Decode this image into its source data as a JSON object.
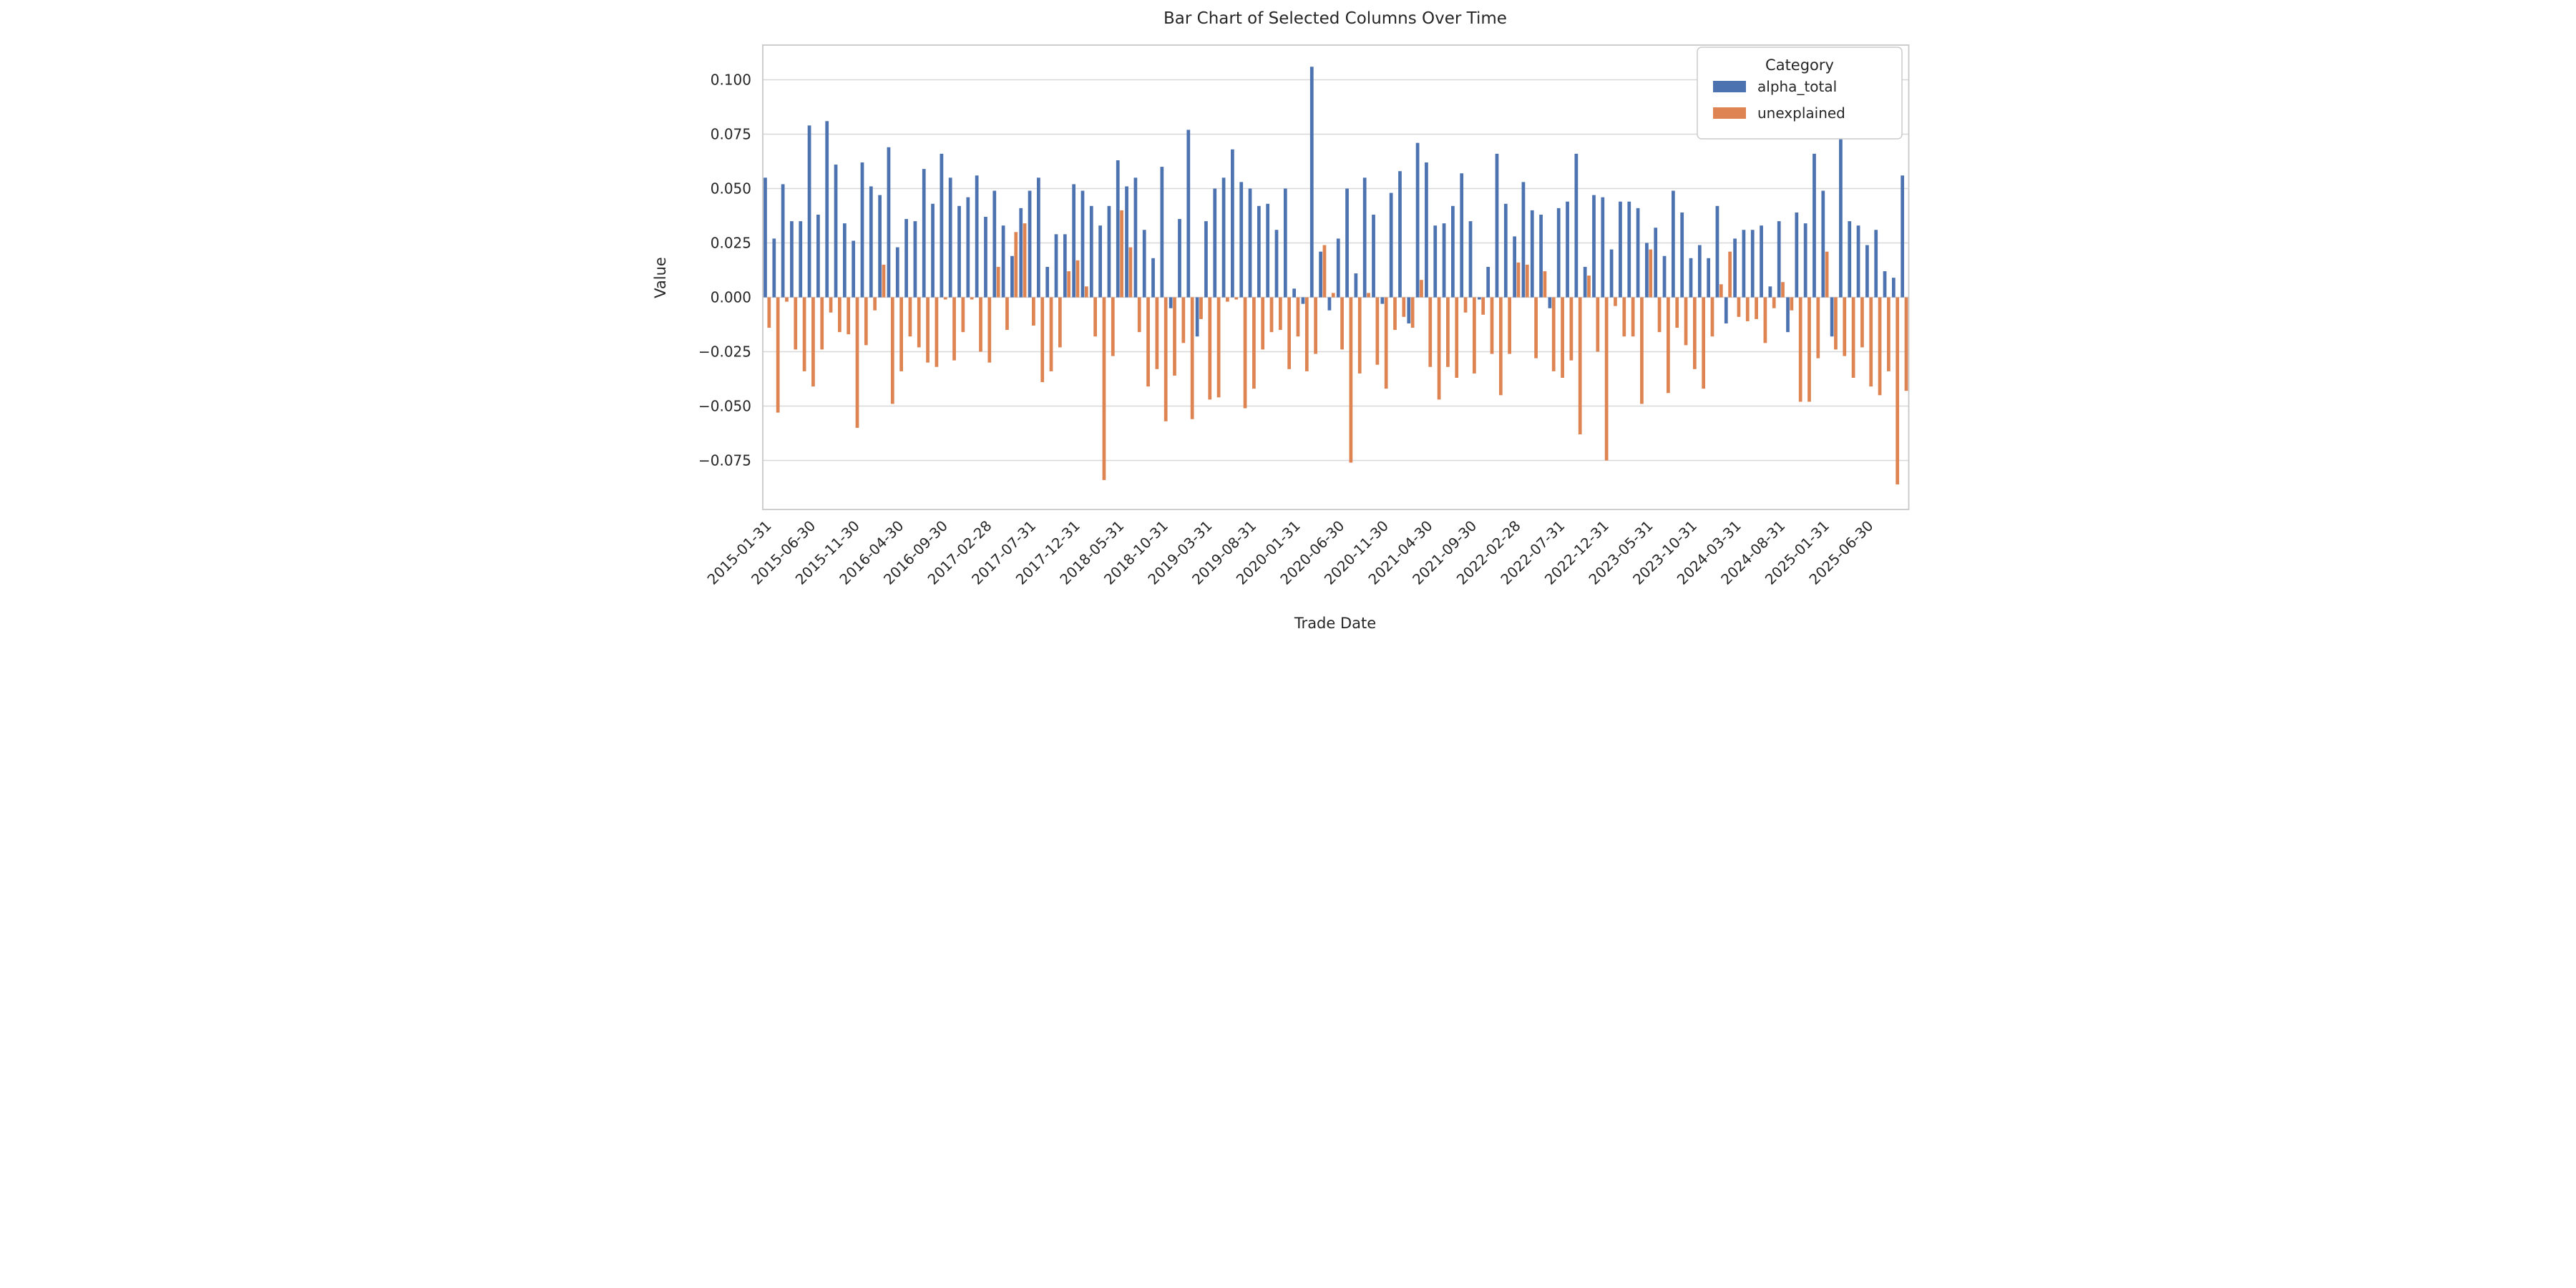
{
  "chart_data": {
    "type": "bar",
    "title": "Bar Chart of Selected Columns Over Time",
    "xlabel": "Trade Date",
    "ylabel": "Value",
    "legend": {
      "title": "Category",
      "position": "upper right"
    },
    "grid": true,
    "ylim": [
      -0.0975,
      0.116
    ],
    "x_tick_rotation": 45,
    "x_tick_step": 5,
    "colors": {
      "grid": "#d8d8d8",
      "spine": "#c8c8c8",
      "text": "#262626",
      "background": "#ffffff"
    },
    "y_ticks": [
      {
        "value": 0.1,
        "label": "0.100"
      },
      {
        "value": 0.075,
        "label": "0.075"
      },
      {
        "value": 0.05,
        "label": "0.050"
      },
      {
        "value": 0.025,
        "label": "0.025"
      },
      {
        "value": 0.0,
        "label": "0.000"
      },
      {
        "value": -0.025,
        "label": "−0.025"
      },
      {
        "value": -0.05,
        "label": "−0.050"
      },
      {
        "value": -0.075,
        "label": "−0.075"
      }
    ],
    "x_tick_labels": [
      "2015-01-31",
      "2015-06-30",
      "2015-11-30",
      "2016-04-30",
      "2016-09-30",
      "2017-02-28",
      "2017-07-31",
      "2017-12-31",
      "2018-05-31",
      "2018-10-31",
      "2019-03-31",
      "2019-08-31",
      "2020-01-31",
      "2020-06-30",
      "2020-11-30",
      "2021-04-30",
      "2021-09-30",
      "2022-02-28",
      "2022-07-31",
      "2022-12-31",
      "2023-05-31",
      "2023-10-31",
      "2024-03-31",
      "2024-08-31",
      "2025-01-31",
      "2025-06-30"
    ],
    "categories": [
      "2015-01-31",
      "2015-02-28",
      "2015-03-31",
      "2015-04-30",
      "2015-05-31",
      "2015-06-30",
      "2015-07-31",
      "2015-08-31",
      "2015-09-30",
      "2015-10-31",
      "2015-11-30",
      "2015-12-31",
      "2016-01-31",
      "2016-02-29",
      "2016-03-31",
      "2016-04-30",
      "2016-05-31",
      "2016-06-30",
      "2016-07-31",
      "2016-08-31",
      "2016-09-30",
      "2016-10-31",
      "2016-11-30",
      "2016-12-31",
      "2017-01-31",
      "2017-02-28",
      "2017-03-31",
      "2017-04-30",
      "2017-05-31",
      "2017-06-30",
      "2017-07-31",
      "2017-08-31",
      "2017-09-30",
      "2017-10-31",
      "2017-11-30",
      "2017-12-31",
      "2018-01-31",
      "2018-02-28",
      "2018-03-31",
      "2018-04-30",
      "2018-05-31",
      "2018-06-30",
      "2018-07-31",
      "2018-08-31",
      "2018-09-30",
      "2018-10-31",
      "2018-11-30",
      "2018-12-31",
      "2019-01-31",
      "2019-02-28",
      "2019-03-31",
      "2019-04-30",
      "2019-05-31",
      "2019-06-30",
      "2019-07-31",
      "2019-08-31",
      "2019-09-30",
      "2019-10-31",
      "2019-11-30",
      "2019-12-31",
      "2020-01-31",
      "2020-02-29",
      "2020-03-31",
      "2020-04-30",
      "2020-05-31",
      "2020-06-30",
      "2020-07-31",
      "2020-08-31",
      "2020-09-30",
      "2020-10-31",
      "2020-11-30",
      "2020-12-31",
      "2021-01-31",
      "2021-02-28",
      "2021-03-31",
      "2021-04-30",
      "2021-05-31",
      "2021-06-30",
      "2021-07-31",
      "2021-08-31",
      "2021-09-30",
      "2021-10-31",
      "2021-11-30",
      "2021-12-31",
      "2022-01-31",
      "2022-02-28",
      "2022-03-31",
      "2022-04-30",
      "2022-05-31",
      "2022-06-30",
      "2022-07-31",
      "2022-08-31",
      "2022-09-30",
      "2022-10-31",
      "2022-11-30",
      "2022-12-31",
      "2023-01-31",
      "2023-02-28",
      "2023-03-31",
      "2023-04-30",
      "2023-05-31",
      "2023-06-30",
      "2023-07-31",
      "2023-08-31",
      "2023-09-30",
      "2023-10-31",
      "2023-11-30",
      "2023-12-31",
      "2024-01-31",
      "2024-02-29",
      "2024-03-31",
      "2024-04-30",
      "2024-05-31",
      "2024-06-30",
      "2024-07-31",
      "2024-08-31",
      "2024-09-30",
      "2024-10-31",
      "2024-11-30",
      "2024-12-31",
      "2025-01-31",
      "2025-02-28",
      "2025-03-31",
      "2025-04-30",
      "2025-05-31",
      "2025-06-30",
      "2025-07-31",
      "2025-08-31",
      "2025-09-30",
      "2025-10-31"
    ],
    "series": [
      {
        "name": "alpha_total",
        "color": "#4c72b0",
        "values": [
          0.055,
          0.027,
          0.052,
          0.035,
          0.035,
          0.079,
          0.038,
          0.081,
          0.061,
          0.034,
          0.026,
          0.062,
          0.051,
          0.047,
          0.069,
          0.023,
          0.036,
          0.035,
          0.059,
          0.043,
          0.066,
          0.055,
          0.042,
          0.046,
          0.056,
          0.037,
          0.049,
          0.033,
          0.019,
          0.041,
          0.049,
          0.055,
          0.014,
          0.029,
          0.029,
          0.052,
          0.049,
          0.042,
          0.033,
          0.042,
          0.063,
          0.051,
          0.055,
          0.031,
          0.018,
          0.06,
          -0.005,
          0.036,
          0.077,
          -0.018,
          0.035,
          0.05,
          0.055,
          0.068,
          0.053,
          0.05,
          0.042,
          0.043,
          0.031,
          0.05,
          0.004,
          -0.003,
          0.106,
          0.021,
          -0.006,
          0.027,
          0.05,
          0.011,
          0.055,
          0.038,
          -0.003,
          0.048,
          0.058,
          -0.012,
          0.071,
          0.062,
          0.033,
          0.034,
          0.042,
          0.057,
          0.035,
          -0.001,
          0.014,
          0.066,
          0.043,
          0.028,
          0.053,
          0.04,
          0.038,
          -0.005,
          0.041,
          0.044,
          0.066,
          0.014,
          0.047,
          0.046,
          0.022,
          0.044,
          0.044,
          0.041,
          0.025,
          0.032,
          0.019,
          0.049,
          0.039,
          0.018,
          0.024,
          0.018,
          0.042,
          -0.012,
          0.027,
          0.031,
          0.031,
          0.033,
          0.005,
          0.035,
          -0.016,
          0.039,
          0.034,
          0.066,
          0.049,
          -0.018,
          0.077,
          0.035,
          0.033,
          0.024,
          0.031,
          0.012,
          0.009,
          0.056
        ]
      },
      {
        "name": "unexplained",
        "color": "#dd8452",
        "values": [
          -0.014,
          -0.053,
          -0.002,
          -0.024,
          -0.034,
          -0.041,
          -0.024,
          -0.007,
          -0.016,
          -0.017,
          -0.06,
          -0.022,
          -0.006,
          0.015,
          -0.049,
          -0.034,
          -0.018,
          -0.023,
          -0.03,
          -0.032,
          -0.001,
          -0.029,
          -0.016,
          -0.001,
          -0.025,
          -0.03,
          0.014,
          -0.015,
          0.03,
          0.034,
          -0.013,
          -0.039,
          -0.034,
          -0.023,
          0.012,
          0.017,
          0.005,
          -0.018,
          -0.084,
          -0.027,
          0.04,
          0.023,
          -0.016,
          -0.041,
          -0.033,
          -0.057,
          -0.036,
          -0.021,
          -0.056,
          -0.01,
          -0.047,
          -0.046,
          -0.002,
          -0.001,
          -0.051,
          -0.042,
          -0.024,
          -0.016,
          -0.015,
          -0.033,
          -0.018,
          -0.034,
          -0.026,
          0.024,
          0.002,
          -0.024,
          -0.076,
          -0.035,
          0.002,
          -0.031,
          -0.042,
          -0.015,
          -0.009,
          -0.014,
          0.008,
          -0.032,
          -0.047,
          -0.032,
          -0.037,
          -0.007,
          -0.035,
          -0.008,
          -0.026,
          -0.045,
          -0.026,
          0.016,
          0.015,
          -0.028,
          0.012,
          -0.034,
          -0.037,
          -0.029,
          -0.063,
          0.01,
          -0.025,
          -0.075,
          -0.004,
          -0.018,
          -0.018,
          -0.049,
          0.022,
          -0.016,
          -0.044,
          -0.014,
          -0.022,
          -0.033,
          -0.042,
          -0.018,
          0.006,
          0.021,
          -0.009,
          -0.011,
          -0.01,
          -0.021,
          -0.005,
          0.007,
          -0.006,
          -0.048,
          -0.048,
          -0.028,
          0.021,
          -0.024,
          -0.027,
          -0.037,
          -0.023,
          -0.041,
          -0.045,
          -0.034,
          -0.086,
          -0.043
        ]
      }
    ]
  }
}
